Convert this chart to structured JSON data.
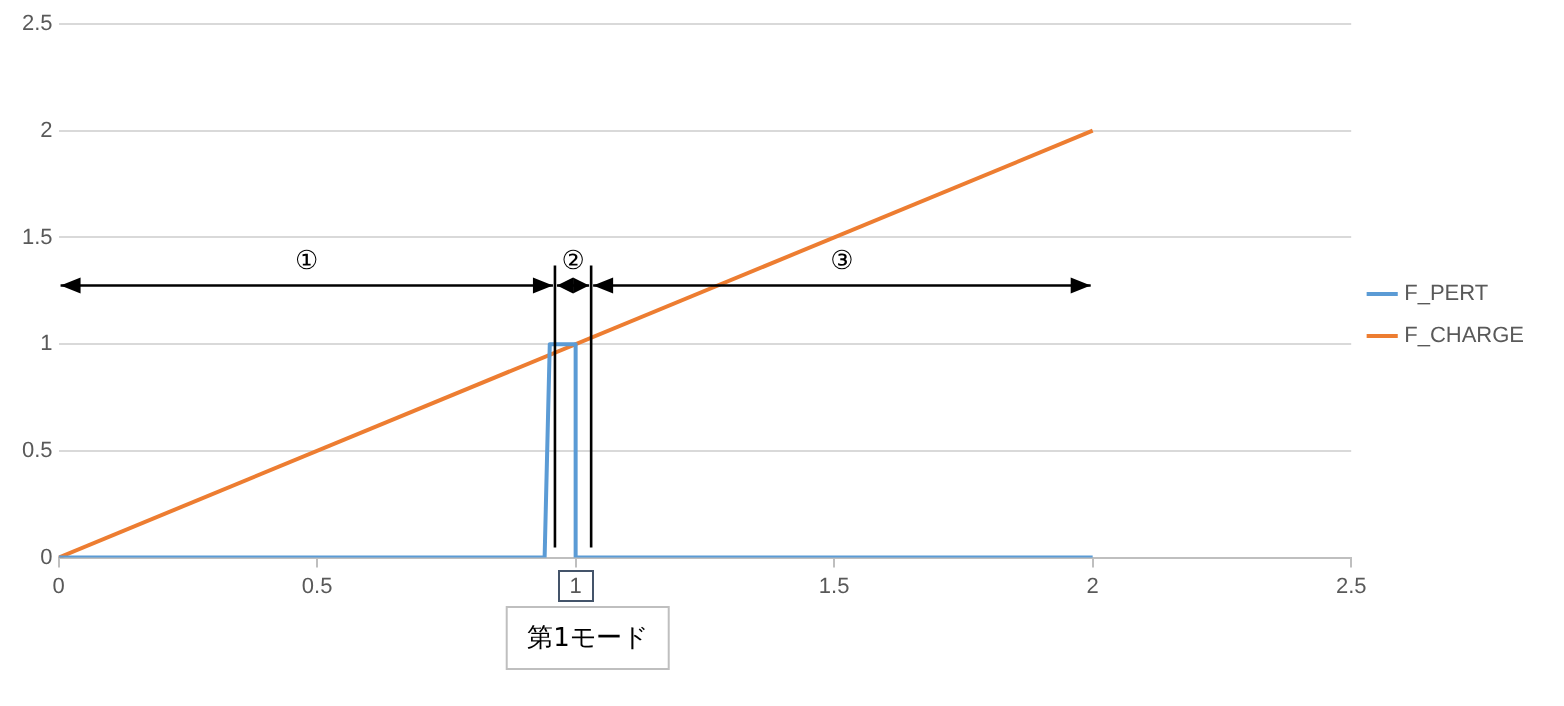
{
  "chart_data": {
    "type": "line",
    "series": [
      {
        "name": "F_PERT",
        "color": "#5b9bd5",
        "x": [
          0,
          0.94,
          0.95,
          1.0,
          1.0,
          2
        ],
        "values": [
          0,
          0,
          1,
          1,
          0,
          0
        ]
      },
      {
        "name": "F_CHARGE",
        "color": "#ed7d31",
        "x": [
          0,
          2
        ],
        "values": [
          0,
          2
        ]
      }
    ],
    "xlim": [
      0,
      2.5
    ],
    "xticks": [
      0,
      0.5,
      1,
      1.5,
      2,
      2.5
    ],
    "ylim": [
      0,
      2.5
    ],
    "yticks": [
      0,
      0.5,
      1,
      1.5,
      2,
      2.5
    ],
    "grid": "y",
    "legend": "right",
    "marker": "none",
    "line_style": "solid",
    "ref_lines": [
      {
        "axis": "x",
        "value": 0.96
      },
      {
        "axis": "x",
        "value": 1.03
      }
    ],
    "annotations": [
      "①",
      "②",
      "③",
      "第1モード"
    ]
  }
}
